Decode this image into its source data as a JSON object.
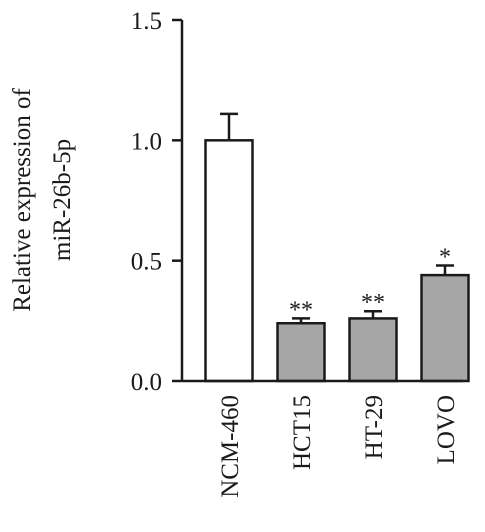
{
  "chart_data": {
    "type": "bar",
    "ylabel_lines": [
      "Relative expression of",
      "miR-26b-5p"
    ],
    "xlabel": "",
    "ylim": [
      0,
      1.5
    ],
    "yticks": [
      0.0,
      0.5,
      1.0,
      1.5
    ],
    "ytick_labels": [
      "0.0",
      "0.5",
      "1.0",
      "1.5"
    ],
    "categories": [
      "NCM-460",
      "HCT15",
      "HT-29",
      "LOVO"
    ],
    "values": [
      1.0,
      0.24,
      0.26,
      0.44
    ],
    "errors": [
      0.11,
      0.02,
      0.03,
      0.04
    ],
    "significance": [
      "",
      "**",
      "**",
      "*"
    ],
    "bar_fills": [
      "#ffffff",
      "#a6a6a6",
      "#a6a6a6",
      "#a6a6a6"
    ],
    "bar_stroke": "#1a1a1a",
    "grid": false,
    "legend": "none"
  }
}
